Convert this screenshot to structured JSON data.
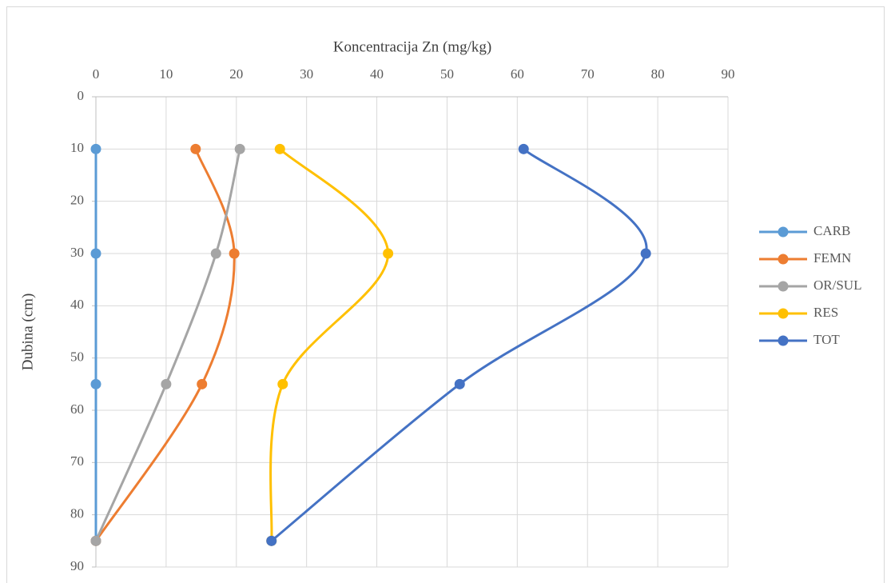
{
  "chart_data": {
    "type": "scatter",
    "x_label": "Koncentracija Zn (mg/kg)",
    "y_label": "Dubina (cm)",
    "xlim": [
      0,
      90
    ],
    "xticks": [
      0,
      10,
      20,
      30,
      40,
      50,
      60,
      70,
      80,
      90
    ],
    "ylim": [
      0,
      90
    ],
    "yticks": [
      0,
      10,
      20,
      30,
      40,
      50,
      60,
      70,
      80,
      90
    ],
    "y_reversed": true,
    "x_axis_position": "top",
    "grid": true,
    "smooth": true,
    "legend": "right",
    "series": [
      {
        "name": "CARB",
        "color": "#5B9BD5",
        "x": [
          0,
          0,
          0,
          0
        ],
        "y": [
          10,
          30,
          55,
          85
        ]
      },
      {
        "name": "FEMN",
        "color": "#ED7D31",
        "x": [
          14.2,
          19.7,
          15.1,
          0
        ],
        "y": [
          10,
          30,
          55,
          85
        ]
      },
      {
        "name": "OR/SUL",
        "color": "#A5A5A5",
        "x": [
          20.5,
          17.1,
          10.0,
          0
        ],
        "y": [
          10,
          30,
          55,
          85
        ]
      },
      {
        "name": "RES",
        "color": "#FFC000",
        "x": [
          26.2,
          41.6,
          26.6,
          25.0
        ],
        "y": [
          10,
          30,
          55,
          85
        ]
      },
      {
        "name": "TOT",
        "color": "#4472C4",
        "x": [
          60.9,
          78.3,
          51.8,
          25.0
        ],
        "y": [
          10,
          30,
          55,
          85
        ]
      }
    ]
  }
}
